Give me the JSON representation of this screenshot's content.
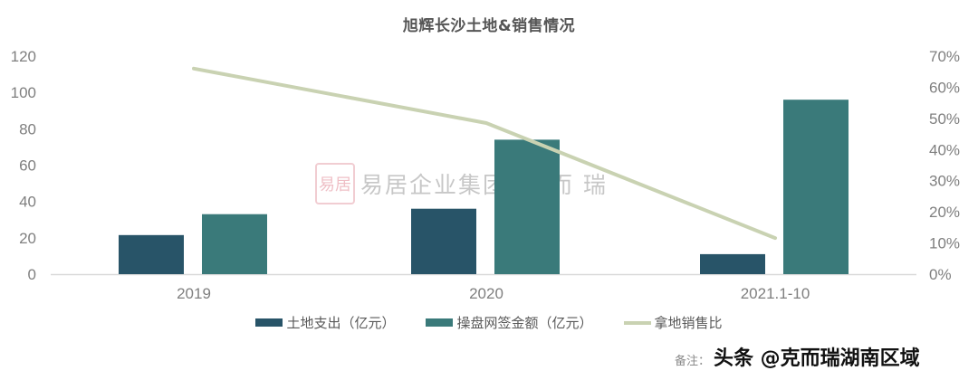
{
  "title": "旭辉长沙土地&销售情况",
  "chart_data": {
    "type": "bar",
    "title": "旭辉长沙土地&销售情况",
    "categories": [
      "2019",
      "2020",
      "2021.1-10"
    ],
    "series": [
      {
        "name": "土地支出（亿元）",
        "type": "bar",
        "axis": "left",
        "color": "#285468",
        "values": [
          21.5,
          36,
          11
        ]
      },
      {
        "name": "操盘网签金额（亿元）",
        "type": "bar",
        "axis": "left",
        "color": "#3a7a7a",
        "values": [
          33,
          74,
          96
        ]
      },
      {
        "name": "拿地销售比",
        "type": "line",
        "axis": "right",
        "color": "#c9d2b2",
        "values": [
          0.66,
          0.485,
          0.116
        ]
      }
    ],
    "left_axis": {
      "ylim": [
        0,
        120
      ],
      "ticks": [
        "0",
        "20",
        "40",
        "60",
        "80",
        "100",
        "120"
      ]
    },
    "right_axis": {
      "ylim": [
        0,
        0.7
      ],
      "ticks": [
        "0%",
        "10%",
        "20%",
        "30%",
        "40%",
        "50%",
        "60%",
        "70%"
      ]
    },
    "xlabel": "",
    "ylabel": "",
    "grid": false,
    "legend_position": "bottom"
  },
  "legend": [
    {
      "label": "土地支出（亿元）",
      "color": "#285468",
      "kind": "bar"
    },
    {
      "label": "操盘网签金额（亿元）",
      "color": "#3a7a7a",
      "kind": "bar"
    },
    {
      "label": "拿地销售比",
      "color": "#c9d2b2",
      "kind": "line"
    }
  ],
  "watermark": {
    "seal": "易居",
    "text": "易居企业集团 克 而 瑞"
  },
  "footer": {
    "note": "备注：",
    "brand": "头条 @克而瑞湖南区域"
  }
}
